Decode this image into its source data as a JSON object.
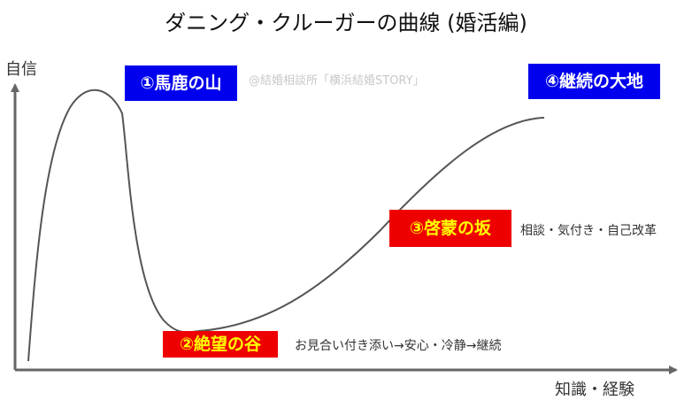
{
  "title": "ダニング・クルーガーの曲線 (婚活編)",
  "axes": {
    "y_label": "自信",
    "x_label": "知識・経験"
  },
  "watermark": "@結婚相談所「横浜結婚STORY」",
  "stages": {
    "stage1": "①馬鹿の山",
    "stage2": "②絶望の谷",
    "stage3": "③啓蒙の坂",
    "stage4": "④継続の大地"
  },
  "annotations": {
    "stage2_note": "お見合い付き添い→安心・冷静→継続",
    "stage3_note": "相談・気付き・自己改革"
  },
  "colors": {
    "blue_box": "#0000ee",
    "red_box": "#ee0000",
    "red_box_text": "#ffff00",
    "curve": "#555555",
    "axis": "#666666"
  }
}
